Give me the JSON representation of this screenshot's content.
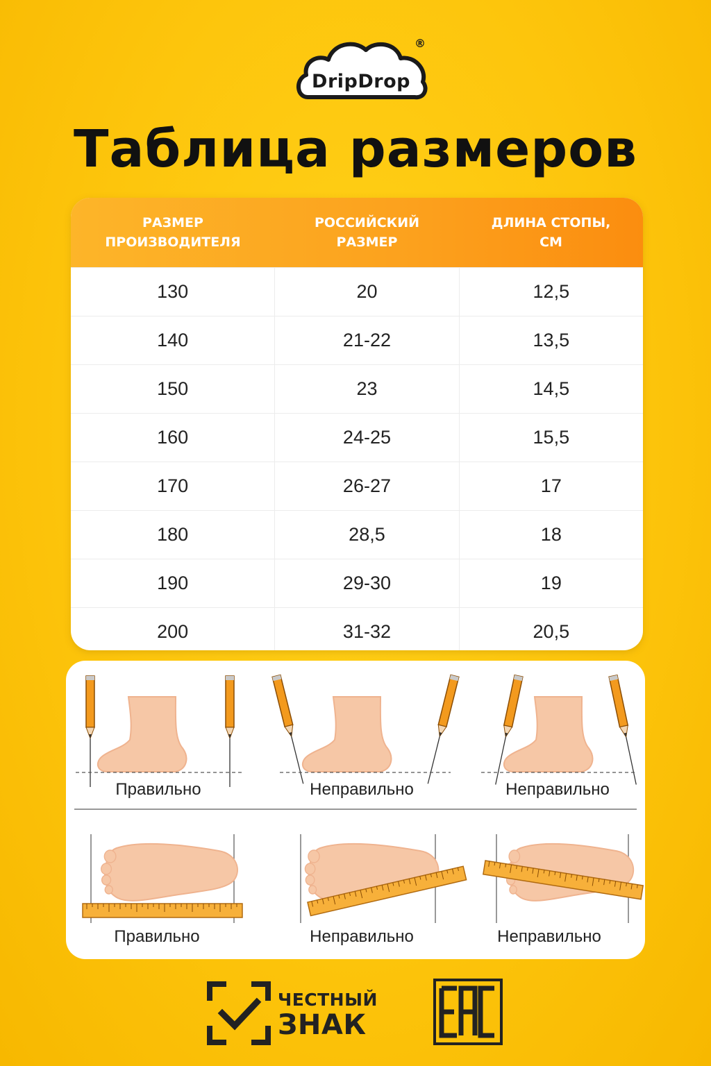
{
  "brand": {
    "logo_text": "DripDrop",
    "registered_mark": "®"
  },
  "title": "Таблица размеров",
  "table": {
    "headers": [
      "РАЗМЕР\nПРОИЗВОДИТЕЛЯ",
      "РОССИЙСКИЙ\nРАЗМЕР",
      "ДЛИНА СТОПЫ,\nСМ"
    ],
    "rows": [
      [
        "130",
        "20",
        "12,5"
      ],
      [
        "140",
        "21-22",
        "13,5"
      ],
      [
        "150",
        "23",
        "14,5"
      ],
      [
        "160",
        "24-25",
        "15,5"
      ],
      [
        "170",
        "26-27",
        "17"
      ],
      [
        "180",
        "28,5",
        "18"
      ],
      [
        "190",
        "29-30",
        "19"
      ],
      [
        "200",
        "31-32",
        "20,5"
      ]
    ]
  },
  "guide": {
    "side_view": [
      {
        "label": "Правильно",
        "icon": "foot-side-pencils-correct-icon"
      },
      {
        "label": "Неправильно",
        "icon": "foot-side-pencils-tilted-in-icon"
      },
      {
        "label": "Неправильно",
        "icon": "foot-side-pencils-tilted-out-icon"
      }
    ],
    "top_view": [
      {
        "label": "Правильно",
        "icon": "foot-top-ruler-straight-icon"
      },
      {
        "label": "Неправильно",
        "icon": "foot-top-ruler-tilted-up-icon"
      },
      {
        "label": "Неправильно",
        "icon": "foot-top-ruler-tilted-down-icon"
      }
    ]
  },
  "footer": {
    "chestny_znak_line1": "ЧЕСТНЫЙ",
    "chestny_znak_line2": "ЗНАК",
    "eac_mark": "EAC"
  },
  "colors": {
    "background": "#fdc50c",
    "header_gradient_start": "#fdb529",
    "header_gradient_end": "#fb8d0f",
    "text_dark": "#111111",
    "skin": "#f6c7a6"
  }
}
